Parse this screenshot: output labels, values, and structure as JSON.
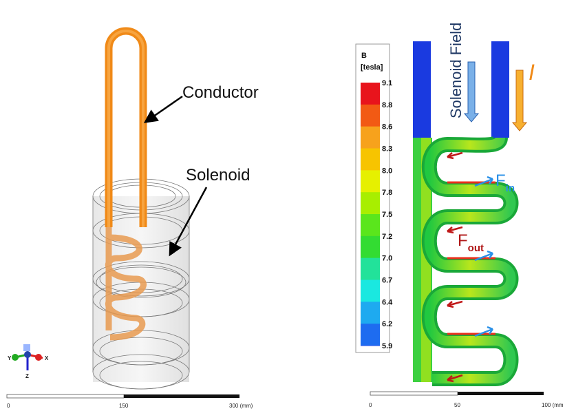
{
  "left_panel": {
    "labels": {
      "conductor": "Conductor",
      "solenoid": "Solenoid"
    },
    "triad": {
      "x": "X",
      "y": "Y",
      "z": "Z"
    },
    "scale_bar": {
      "start": "0",
      "mid": "150",
      "end": "300 (mm)"
    }
  },
  "right_panel": {
    "colorbar": {
      "title": "B",
      "unit": "[tesla]",
      "ticks": [
        "9.1",
        "8.8",
        "8.6",
        "8.3",
        "8.0",
        "7.8",
        "7.5",
        "7.2",
        "7.0",
        "6.7",
        "6.4",
        "6.2",
        "5.9"
      ],
      "colors": [
        "#e8141c",
        "#f25a14",
        "#f7a21c",
        "#f7c400",
        "#e6f000",
        "#a8ee00",
        "#5ae61c",
        "#33dc32",
        "#22e29a",
        "#1ae8e0",
        "#1eaaf0",
        "#1e6cf0",
        "#1818e0"
      ]
    },
    "labels": {
      "field": "Solenoid Field",
      "current": "I",
      "f_in": {
        "main": "F",
        "sub": "in"
      },
      "f_out": {
        "main": "F",
        "sub": "out"
      }
    },
    "scale_bar": {
      "start": "0",
      "mid": "50",
      "end": "100 (mm"
    }
  }
}
